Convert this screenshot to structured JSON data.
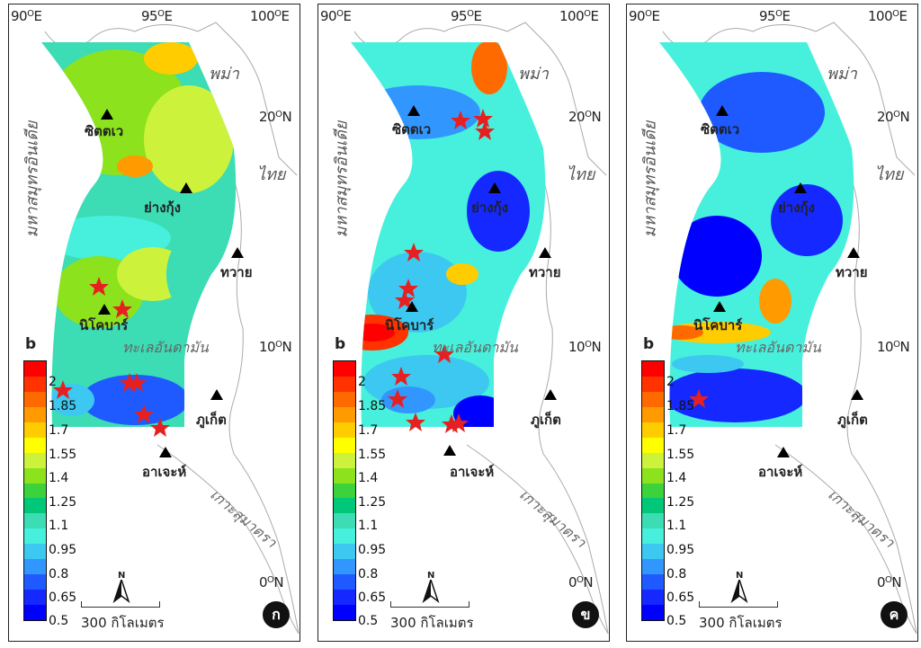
{
  "legend_title": "b",
  "colorbar": {
    "ticks": [
      "2",
      "1.85",
      "1.7",
      "1.55",
      "1.4",
      "1.25",
      "1.1",
      "0.95",
      "0.8",
      "0.65",
      "0.5"
    ],
    "colors": [
      "#ff0000",
      "#ff3200",
      "#ff6a00",
      "#ff9a00",
      "#ffcc00",
      "#ffff00",
      "#ccf23c",
      "#8ce21c",
      "#3cd23c",
      "#00c878",
      "#3cdcb4",
      "#46f0dc",
      "#3cc8f0",
      "#3296ff",
      "#1e5aff",
      "#1428ff",
      "#0000ff"
    ]
  },
  "lon_labels": [
    "90",
    "95",
    "100"
  ],
  "lon_suffix": "E",
  "lat_labels": [
    "20",
    "10",
    "0"
  ],
  "lat_suffix": "N",
  "degree_sign": "O",
  "places": {
    "sittwe": "ซิตตเว",
    "yangon": "ย่างกุ้ง",
    "dawei": "ทวาย",
    "nicobar": "นิโคบาร์",
    "phuket": "ภูเก็ต",
    "aceh": "อาเจะห์"
  },
  "regions": {
    "myanmar": "พม่า",
    "thailand": "ไทย",
    "indian_ocean": "มหาสมุทรอินเดีย",
    "andaman_sea": "ทะเลอันดามัน",
    "sumatra": "เกาะสุมาตรา"
  },
  "scale_label": "300 กิโลเมตร",
  "north_label": "N",
  "panel_letters": [
    "ก",
    "ข",
    "ค"
  ]
}
